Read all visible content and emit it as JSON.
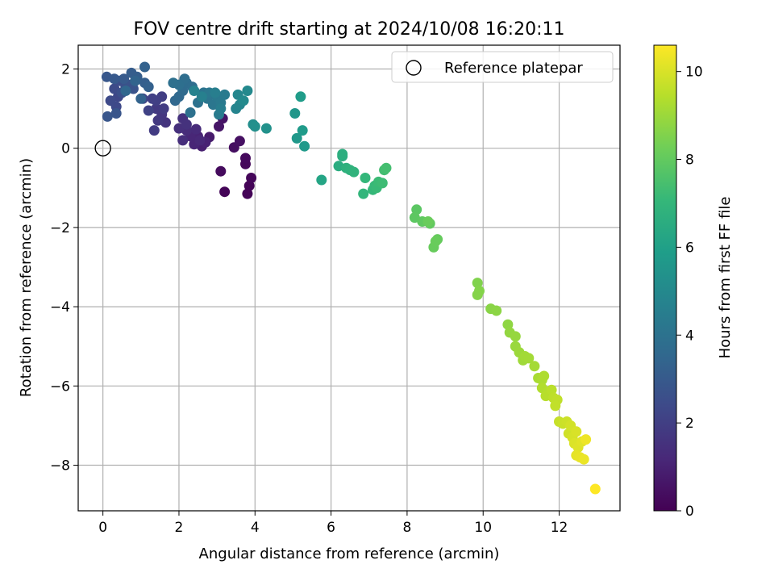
{
  "chart_data": {
    "type": "scatter",
    "title": "FOV centre drift starting at 2024/10/08 16:20:11",
    "xlabel": "Angular distance from reference (arcmin)",
    "ylabel": "Rotation from reference (arcmin)",
    "xlim": [
      -0.65,
      13.6
    ],
    "ylim": [
      -9.15,
      2.6
    ],
    "xticks": [
      0,
      2,
      4,
      6,
      8,
      10,
      12
    ],
    "yticks": [
      2,
      0,
      -2,
      -4,
      -6,
      -8
    ],
    "grid": true,
    "legend": {
      "placement": "top-right",
      "entries": [
        "Reference platepar"
      ]
    },
    "reference_point": {
      "x": 0,
      "y": 0,
      "label": "Reference platepar"
    },
    "colorbar": {
      "label": "Hours from first FF file",
      "range": [
        0,
        10.6
      ],
      "ticks": [
        0,
        2,
        4,
        6,
        8,
        10
      ],
      "colormap": "viridis"
    },
    "points": [
      {
        "x": 3.2,
        "y": -1.1,
        "c": 0.1
      },
      {
        "x": 3.8,
        "y": -1.15,
        "c": 0.1
      },
      {
        "x": 3.85,
        "y": -0.95,
        "c": 0.1
      },
      {
        "x": 3.9,
        "y": -0.75,
        "c": 0.15
      },
      {
        "x": 3.75,
        "y": -0.4,
        "c": 0.2
      },
      {
        "x": 3.75,
        "y": -0.25,
        "c": 0.25
      },
      {
        "x": 3.1,
        "y": -0.58,
        "c": 0.3
      },
      {
        "x": 3.45,
        "y": 0.02,
        "c": 0.4
      },
      {
        "x": 3.6,
        "y": 0.18,
        "c": 0.45
      },
      {
        "x": 3.15,
        "y": 0.75,
        "c": 0.55
      },
      {
        "x": 3.05,
        "y": 0.55,
        "c": 0.6
      },
      {
        "x": 2.8,
        "y": 0.28,
        "c": 0.8
      },
      {
        "x": 2.6,
        "y": 0.05,
        "c": 0.9
      },
      {
        "x": 2.7,
        "y": 0.15,
        "c": 1.0
      },
      {
        "x": 2.5,
        "y": 0.3,
        "c": 1.05
      },
      {
        "x": 2.4,
        "y": 0.1,
        "c": 1.1
      },
      {
        "x": 2.3,
        "y": 0.3,
        "c": 1.15
      },
      {
        "x": 2.55,
        "y": 0.2,
        "c": 1.2
      },
      {
        "x": 2.45,
        "y": 0.48,
        "c": 1.3
      },
      {
        "x": 2.2,
        "y": 0.45,
        "c": 1.35
      },
      {
        "x": 2.1,
        "y": 0.2,
        "c": 1.4
      },
      {
        "x": 2.0,
        "y": 0.5,
        "c": 1.45
      },
      {
        "x": 2.1,
        "y": 0.75,
        "c": 1.5
      },
      {
        "x": 2.2,
        "y": 0.6,
        "c": 1.55
      },
      {
        "x": 1.65,
        "y": 0.65,
        "c": 1.6
      },
      {
        "x": 1.55,
        "y": 0.85,
        "c": 1.7
      },
      {
        "x": 1.45,
        "y": 0.7,
        "c": 1.75
      },
      {
        "x": 1.4,
        "y": 1.0,
        "c": 1.8
      },
      {
        "x": 1.35,
        "y": 0.45,
        "c": 1.85
      },
      {
        "x": 1.6,
        "y": 1.0,
        "c": 1.9
      },
      {
        "x": 1.55,
        "y": 1.3,
        "c": 1.95
      },
      {
        "x": 1.4,
        "y": 1.2,
        "c": 2.0
      },
      {
        "x": 1.3,
        "y": 1.25,
        "c": 2.05
      },
      {
        "x": 1.2,
        "y": 0.95,
        "c": 2.1
      },
      {
        "x": 1.05,
        "y": 1.25,
        "c": 2.2
      },
      {
        "x": 0.4,
        "y": 1.3,
        "c": 2.3
      },
      {
        "x": 0.35,
        "y": 1.05,
        "c": 2.35
      },
      {
        "x": 0.2,
        "y": 1.2,
        "c": 2.4
      },
      {
        "x": 0.3,
        "y": 1.5,
        "c": 2.45
      },
      {
        "x": 0.45,
        "y": 1.7,
        "c": 2.5
      },
      {
        "x": 0.5,
        "y": 1.4,
        "c": 2.6
      },
      {
        "x": 0.6,
        "y": 1.55,
        "c": 2.65
      },
      {
        "x": 0.7,
        "y": 1.6,
        "c": 2.7
      },
      {
        "x": 0.8,
        "y": 1.5,
        "c": 2.75
      },
      {
        "x": 0.35,
        "y": 0.88,
        "c": 2.8
      },
      {
        "x": 0.12,
        "y": 0.8,
        "c": 2.85
      },
      {
        "x": 0.1,
        "y": 1.8,
        "c": 2.9
      },
      {
        "x": 0.3,
        "y": 1.75,
        "c": 2.95
      },
      {
        "x": 0.55,
        "y": 1.75,
        "c": 3.0
      },
      {
        "x": 0.75,
        "y": 1.9,
        "c": 3.1
      },
      {
        "x": 0.9,
        "y": 1.8,
        "c": 3.15
      },
      {
        "x": 1.1,
        "y": 1.65,
        "c": 3.2
      },
      {
        "x": 1.2,
        "y": 1.55,
        "c": 3.25
      },
      {
        "x": 1.1,
        "y": 2.05,
        "c": 3.3
      },
      {
        "x": 1.0,
        "y": 1.25,
        "c": 3.35
      },
      {
        "x": 0.85,
        "y": 1.7,
        "c": 3.4
      },
      {
        "x": 0.6,
        "y": 1.45,
        "c": 3.5
      },
      {
        "x": 1.9,
        "y": 1.2,
        "c": 3.55
      },
      {
        "x": 2.0,
        "y": 1.3,
        "c": 3.6
      },
      {
        "x": 2.1,
        "y": 1.45,
        "c": 3.65
      },
      {
        "x": 2.2,
        "y": 1.65,
        "c": 3.7
      },
      {
        "x": 2.35,
        "y": 1.55,
        "c": 3.75
      },
      {
        "x": 2.15,
        "y": 1.75,
        "c": 3.8
      },
      {
        "x": 2.0,
        "y": 1.6,
        "c": 3.85
      },
      {
        "x": 1.85,
        "y": 1.65,
        "c": 3.9
      },
      {
        "x": 2.3,
        "y": 0.9,
        "c": 3.95
      },
      {
        "x": 2.5,
        "y": 1.15,
        "c": 4.0
      },
      {
        "x": 2.65,
        "y": 1.4,
        "c": 4.05
      },
      {
        "x": 2.75,
        "y": 1.25,
        "c": 4.1
      },
      {
        "x": 2.9,
        "y": 1.1,
        "c": 4.15
      },
      {
        "x": 2.8,
        "y": 1.4,
        "c": 4.2
      },
      {
        "x": 3.0,
        "y": 1.3,
        "c": 4.25
      },
      {
        "x": 3.1,
        "y": 1.15,
        "c": 4.3
      },
      {
        "x": 3.2,
        "y": 1.35,
        "c": 4.35
      },
      {
        "x": 3.05,
        "y": 0.85,
        "c": 4.4
      },
      {
        "x": 3.1,
        "y": 1.0,
        "c": 4.5
      },
      {
        "x": 2.95,
        "y": 1.4,
        "c": 4.55
      },
      {
        "x": 2.6,
        "y": 1.3,
        "c": 4.6
      },
      {
        "x": 2.4,
        "y": 1.45,
        "c": 4.7
      },
      {
        "x": 3.5,
        "y": 1.0,
        "c": 4.8
      },
      {
        "x": 3.6,
        "y": 1.1,
        "c": 4.85
      },
      {
        "x": 3.55,
        "y": 1.35,
        "c": 4.9
      },
      {
        "x": 3.8,
        "y": 1.45,
        "c": 5.0
      },
      {
        "x": 3.7,
        "y": 1.2,
        "c": 5.05
      },
      {
        "x": 3.95,
        "y": 0.6,
        "c": 5.2
      },
      {
        "x": 4.0,
        "y": 0.55,
        "c": 5.3
      },
      {
        "x": 4.3,
        "y": 0.5,
        "c": 5.35
      },
      {
        "x": 5.05,
        "y": 0.88,
        "c": 5.55
      },
      {
        "x": 5.1,
        "y": 0.25,
        "c": 5.65
      },
      {
        "x": 5.3,
        "y": 0.05,
        "c": 5.7
      },
      {
        "x": 5.25,
        "y": 0.45,
        "c": 5.75
      },
      {
        "x": 5.2,
        "y": 1.3,
        "c": 5.8
      },
      {
        "x": 5.75,
        "y": -0.8,
        "c": 6.2
      },
      {
        "x": 6.2,
        "y": -0.45,
        "c": 6.55
      },
      {
        "x": 6.3,
        "y": -0.2,
        "c": 6.6
      },
      {
        "x": 6.3,
        "y": -0.15,
        "c": 6.65
      },
      {
        "x": 6.4,
        "y": -0.5,
        "c": 6.75
      },
      {
        "x": 6.5,
        "y": -0.55,
        "c": 6.8
      },
      {
        "x": 6.6,
        "y": -0.6,
        "c": 6.85
      },
      {
        "x": 6.85,
        "y": -1.15,
        "c": 6.95
      },
      {
        "x": 6.9,
        "y": -0.75,
        "c": 7.0
      },
      {
        "x": 7.1,
        "y": -1.05,
        "c": 7.05
      },
      {
        "x": 7.15,
        "y": -0.95,
        "c": 7.1
      },
      {
        "x": 7.2,
        "y": -1.0,
        "c": 7.15
      },
      {
        "x": 7.25,
        "y": -0.85,
        "c": 7.2
      },
      {
        "x": 7.35,
        "y": -0.88,
        "c": 7.25
      },
      {
        "x": 7.4,
        "y": -0.55,
        "c": 7.35
      },
      {
        "x": 7.45,
        "y": -0.5,
        "c": 7.4
      },
      {
        "x": 8.25,
        "y": -1.55,
        "c": 7.85
      },
      {
        "x": 8.2,
        "y": -1.75,
        "c": 7.9
      },
      {
        "x": 8.4,
        "y": -1.85,
        "c": 7.95
      },
      {
        "x": 8.6,
        "y": -1.9,
        "c": 8.0
      },
      {
        "x": 8.8,
        "y": -2.3,
        "c": 8.05
      },
      {
        "x": 8.7,
        "y": -2.5,
        "c": 8.1
      },
      {
        "x": 8.75,
        "y": -2.35,
        "c": 8.12
      },
      {
        "x": 8.55,
        "y": -1.85,
        "c": 8.15
      },
      {
        "x": 9.85,
        "y": -3.4,
        "c": 8.55
      },
      {
        "x": 9.9,
        "y": -3.6,
        "c": 8.6
      },
      {
        "x": 9.85,
        "y": -3.7,
        "c": 8.62
      },
      {
        "x": 10.2,
        "y": -4.05,
        "c": 8.7
      },
      {
        "x": 10.35,
        "y": -4.1,
        "c": 8.75
      },
      {
        "x": 10.65,
        "y": -4.45,
        "c": 8.8
      },
      {
        "x": 10.7,
        "y": -4.65,
        "c": 8.85
      },
      {
        "x": 10.85,
        "y": -4.75,
        "c": 8.9
      },
      {
        "x": 10.85,
        "y": -5.0,
        "c": 8.95
      },
      {
        "x": 10.95,
        "y": -5.15,
        "c": 9.0
      },
      {
        "x": 11.05,
        "y": -5.35,
        "c": 9.05
      },
      {
        "x": 11.1,
        "y": -5.25,
        "c": 9.1
      },
      {
        "x": 11.2,
        "y": -5.3,
        "c": 9.12
      },
      {
        "x": 11.35,
        "y": -5.5,
        "c": 9.15
      },
      {
        "x": 11.45,
        "y": -5.8,
        "c": 9.2
      },
      {
        "x": 11.55,
        "y": -5.85,
        "c": 9.25
      },
      {
        "x": 11.6,
        "y": -5.75,
        "c": 9.3
      },
      {
        "x": 11.55,
        "y": -6.05,
        "c": 9.35
      },
      {
        "x": 11.7,
        "y": -6.15,
        "c": 9.4
      },
      {
        "x": 11.65,
        "y": -6.25,
        "c": 9.45
      },
      {
        "x": 11.8,
        "y": -6.1,
        "c": 9.5
      },
      {
        "x": 11.85,
        "y": -6.3,
        "c": 9.55
      },
      {
        "x": 11.95,
        "y": -6.35,
        "c": 9.6
      },
      {
        "x": 11.9,
        "y": -6.5,
        "c": 9.62
      },
      {
        "x": 12.0,
        "y": -6.9,
        "c": 9.7
      },
      {
        "x": 12.1,
        "y": -6.95,
        "c": 9.75
      },
      {
        "x": 12.2,
        "y": -6.9,
        "c": 9.8
      },
      {
        "x": 12.25,
        "y": -7.2,
        "c": 9.85
      },
      {
        "x": 12.3,
        "y": -7.0,
        "c": 9.9
      },
      {
        "x": 12.35,
        "y": -7.3,
        "c": 9.95
      },
      {
        "x": 12.45,
        "y": -7.15,
        "c": 10.0
      },
      {
        "x": 12.4,
        "y": -7.45,
        "c": 10.05
      },
      {
        "x": 12.5,
        "y": -7.55,
        "c": 10.1
      },
      {
        "x": 12.6,
        "y": -7.4,
        "c": 10.15
      },
      {
        "x": 12.45,
        "y": -7.75,
        "c": 10.2
      },
      {
        "x": 12.55,
        "y": -7.8,
        "c": 10.25
      },
      {
        "x": 12.65,
        "y": -7.85,
        "c": 10.3
      },
      {
        "x": 12.7,
        "y": -7.35,
        "c": 10.35
      },
      {
        "x": 12.95,
        "y": -8.6,
        "c": 10.6
      }
    ]
  },
  "colors": {
    "viridis": [
      "#440154",
      "#482878",
      "#3e4989",
      "#31688e",
      "#26828e",
      "#1f9e89",
      "#35b779",
      "#6ece58",
      "#b5de2b",
      "#fde725"
    ],
    "grid": "#b0b0b0",
    "legend_border": "#cccccc"
  }
}
